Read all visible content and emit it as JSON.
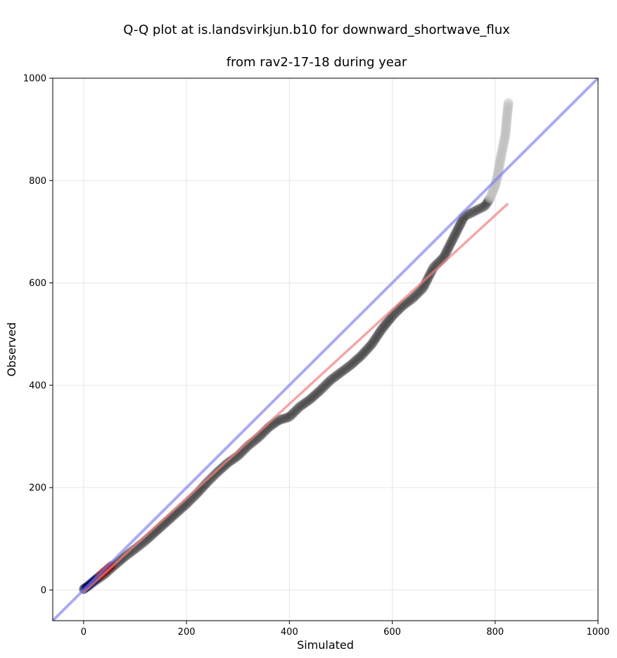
{
  "chart_data": {
    "type": "scatter",
    "title_line1": "Q-Q plot at is.landsvirkjun.b10 for downward_shortwave_flux",
    "title_line2": "from rav2-17-18 during year",
    "xlabel": "Simulated",
    "ylabel": "Observed",
    "xlim": [
      -60,
      1000
    ],
    "ylim": [
      -60,
      1000
    ],
    "xticks": [
      0,
      200,
      400,
      600,
      800,
      1000
    ],
    "yticks": [
      0,
      200,
      400,
      600,
      800,
      1000
    ],
    "grid": true,
    "legend": "none",
    "quantiles": [
      [
        0,
        2
      ],
      [
        10,
        8
      ],
      [
        20,
        16
      ],
      [
        40,
        30
      ],
      [
        60,
        48
      ],
      [
        80,
        65
      ],
      [
        100,
        80
      ],
      [
        120,
        96
      ],
      [
        140,
        114
      ],
      [
        160,
        132
      ],
      [
        180,
        150
      ],
      [
        200,
        168
      ],
      [
        220,
        188
      ],
      [
        240,
        210
      ],
      [
        260,
        230
      ],
      [
        280,
        248
      ],
      [
        300,
        262
      ],
      [
        320,
        282
      ],
      [
        340,
        298
      ],
      [
        360,
        318
      ],
      [
        380,
        332
      ],
      [
        400,
        338
      ],
      [
        420,
        358
      ],
      [
        440,
        372
      ],
      [
        460,
        390
      ],
      [
        480,
        410
      ],
      [
        500,
        425
      ],
      [
        520,
        440
      ],
      [
        540,
        458
      ],
      [
        560,
        480
      ],
      [
        580,
        510
      ],
      [
        600,
        535
      ],
      [
        620,
        555
      ],
      [
        640,
        570
      ],
      [
        660,
        590
      ],
      [
        680,
        630
      ],
      [
        700,
        650
      ],
      [
        720,
        690
      ],
      [
        740,
        730
      ],
      [
        760,
        740
      ],
      [
        780,
        750
      ],
      [
        790,
        765
      ],
      [
        800,
        790
      ],
      [
        805,
        810
      ],
      [
        810,
        840
      ],
      [
        815,
        865
      ],
      [
        820,
        890
      ],
      [
        823,
        925
      ],
      [
        826,
        952
      ]
    ],
    "fit_line": {
      "x": [
        0,
        825
      ],
      "y": [
        -5,
        755
      ]
    },
    "identity_line": {
      "x": [
        -60,
        1000
      ],
      "y": [
        -60,
        1000
      ]
    },
    "colors": {
      "points": "#1a1a1a",
      "points_tail": "#bdbdbd",
      "fit_line": "#f08080",
      "identity_line": "#7c7cf0",
      "low_points_overlay": "#8b0000",
      "low_points_blue": "#00006b",
      "grid": "#e6e6e6"
    }
  }
}
